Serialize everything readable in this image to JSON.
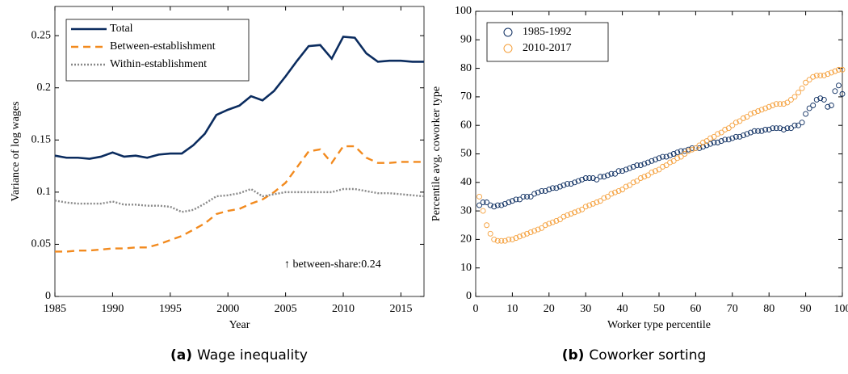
{
  "chart_data": [
    {
      "type": "line",
      "xlabel": "Year",
      "ylabel": "Variance of log wages",
      "caption_label": "(a)",
      "caption": "Wage inequality",
      "annotation": "↑ between-share:0.24",
      "legend": "upper left",
      "x": [
        1985,
        1986,
        1987,
        1988,
        1989,
        1990,
        1991,
        1992,
        1993,
        1994,
        1995,
        1996,
        1997,
        1998,
        1999,
        2000,
        2001,
        2002,
        2003,
        2004,
        2005,
        2006,
        2007,
        2008,
        2009,
        2010,
        2011,
        2012,
        2013,
        2014,
        2015,
        2016,
        2017
      ],
      "xlim": [
        1985,
        2017
      ],
      "xticks": [
        1985,
        1990,
        1995,
        2000,
        2005,
        2010,
        2015
      ],
      "ylim": [
        0,
        0.278
      ],
      "yticks": [
        0,
        0.05,
        0.1,
        0.15,
        0.2,
        0.25
      ],
      "series": [
        {
          "name": "Total",
          "color": "#0b2c5f",
          "linestyle": "solid",
          "values": [
            0.135,
            0.133,
            0.133,
            0.132,
            0.134,
            0.138,
            0.134,
            0.135,
            0.133,
            0.136,
            0.137,
            0.137,
            0.145,
            0.156,
            0.174,
            0.179,
            0.183,
            0.192,
            0.188,
            0.197,
            0.211,
            0.226,
            0.24,
            0.241,
            0.228,
            0.249,
            0.248,
            0.233,
            0.225,
            0.226,
            0.226,
            0.225,
            0.225
          ]
        },
        {
          "name": "Between-establishment",
          "color": "#f28a1e",
          "linestyle": "dashed",
          "values": [
            0.043,
            0.043,
            0.044,
            0.044,
            0.045,
            0.046,
            0.046,
            0.047,
            0.047,
            0.05,
            0.054,
            0.058,
            0.064,
            0.07,
            0.079,
            0.082,
            0.084,
            0.089,
            0.093,
            0.1,
            0.109,
            0.124,
            0.139,
            0.141,
            0.128,
            0.144,
            0.144,
            0.133,
            0.128,
            0.128,
            0.129,
            0.129,
            0.129
          ]
        },
        {
          "name": "Within-establishment",
          "color": "#888888",
          "linestyle": "dotted",
          "values": [
            0.092,
            0.09,
            0.089,
            0.089,
            0.089,
            0.091,
            0.088,
            0.088,
            0.087,
            0.087,
            0.086,
            0.081,
            0.083,
            0.089,
            0.096,
            0.097,
            0.099,
            0.103,
            0.096,
            0.098,
            0.1,
            0.1,
            0.1,
            0.1,
            0.1,
            0.103,
            0.103,
            0.101,
            0.099,
            0.099,
            0.098,
            0.097,
            0.096
          ]
        }
      ]
    },
    {
      "type": "scatter",
      "xlabel": "Worker type percentile",
      "ylabel": "Percentile avg. coworker type",
      "caption_label": "(b)",
      "caption": "Coworker sorting",
      "legend": "upper left",
      "x": [
        1,
        2,
        3,
        4,
        5,
        6,
        7,
        8,
        9,
        10,
        11,
        12,
        13,
        14,
        15,
        16,
        17,
        18,
        19,
        20,
        21,
        22,
        23,
        24,
        25,
        26,
        27,
        28,
        29,
        30,
        31,
        32,
        33,
        34,
        35,
        36,
        37,
        38,
        39,
        40,
        41,
        42,
        43,
        44,
        45,
        46,
        47,
        48,
        49,
        50,
        51,
        52,
        53,
        54,
        55,
        56,
        57,
        58,
        59,
        60,
        61,
        62,
        63,
        64,
        65,
        66,
        67,
        68,
        69,
        70,
        71,
        72,
        73,
        74,
        75,
        76,
        77,
        78,
        79,
        80,
        81,
        82,
        83,
        84,
        85,
        86,
        87,
        88,
        89,
        90,
        91,
        92,
        93,
        94,
        95,
        96,
        97,
        98,
        99,
        100
      ],
      "xlim": [
        0,
        100
      ],
      "xticks": [
        0,
        10,
        20,
        30,
        40,
        50,
        60,
        70,
        80,
        90,
        100
      ],
      "ylim": [
        0,
        100
      ],
      "yticks": [
        0,
        10,
        20,
        30,
        40,
        50,
        60,
        70,
        80,
        90,
        100
      ],
      "series": [
        {
          "name": "1985-1992",
          "color": "#0b2c5f",
          "values": [
            32,
            33,
            33,
            32,
            31.5,
            32,
            32,
            32.5,
            33,
            33.5,
            34,
            34,
            35,
            35,
            35,
            36,
            36.5,
            37,
            37,
            37.5,
            38,
            38,
            38.5,
            39,
            39.5,
            39.5,
            40,
            40.5,
            41,
            41.5,
            41.5,
            41.5,
            41,
            42,
            42,
            42.5,
            43,
            43,
            44,
            44,
            44.5,
            45,
            45.5,
            46,
            46,
            46.5,
            47,
            47.5,
            48,
            48.5,
            49,
            49,
            49.5,
            50,
            50.5,
            51,
            51,
            51.5,
            52,
            52,
            52,
            52.5,
            53,
            53.5,
            54,
            54,
            54.5,
            55,
            55,
            55.5,
            56,
            56,
            56.5,
            57,
            57.5,
            58,
            58,
            58,
            58.5,
            58.5,
            59,
            59,
            59,
            58.5,
            59,
            59,
            60,
            60,
            61,
            64,
            66,
            67,
            69,
            69.5,
            69,
            66.5,
            67,
            72,
            74,
            71
          ]
        },
        {
          "name": "2010-2017",
          "color": "#f5a03c",
          "values": [
            35,
            30,
            25,
            22,
            20,
            19.5,
            19.5,
            19.5,
            20,
            20,
            20.5,
            21,
            21.5,
            22,
            22.5,
            23,
            23.5,
            24,
            25,
            25.5,
            26,
            26.5,
            27,
            28,
            28.5,
            29,
            29.5,
            30,
            30.5,
            31.5,
            32,
            32.5,
            33,
            33.5,
            34.5,
            35,
            36,
            36.5,
            37,
            37.5,
            38.5,
            39,
            40,
            40.5,
            41.5,
            42,
            42.5,
            43.5,
            44,
            44.5,
            45.5,
            46,
            47,
            47.5,
            48.5,
            49,
            50,
            51,
            51.5,
            52,
            53,
            54,
            54.5,
            55.5,
            56,
            57,
            57.5,
            58.5,
            59,
            60,
            61,
            61.5,
            62.5,
            63,
            64,
            64.5,
            65,
            65.5,
            66,
            66.5,
            67,
            67.5,
            67.5,
            67.5,
            68,
            69,
            70,
            71.5,
            73,
            75,
            76,
            77,
            77.5,
            77.5,
            77.5,
            78,
            78.5,
            79,
            79.5,
            79.5
          ]
        }
      ]
    }
  ]
}
